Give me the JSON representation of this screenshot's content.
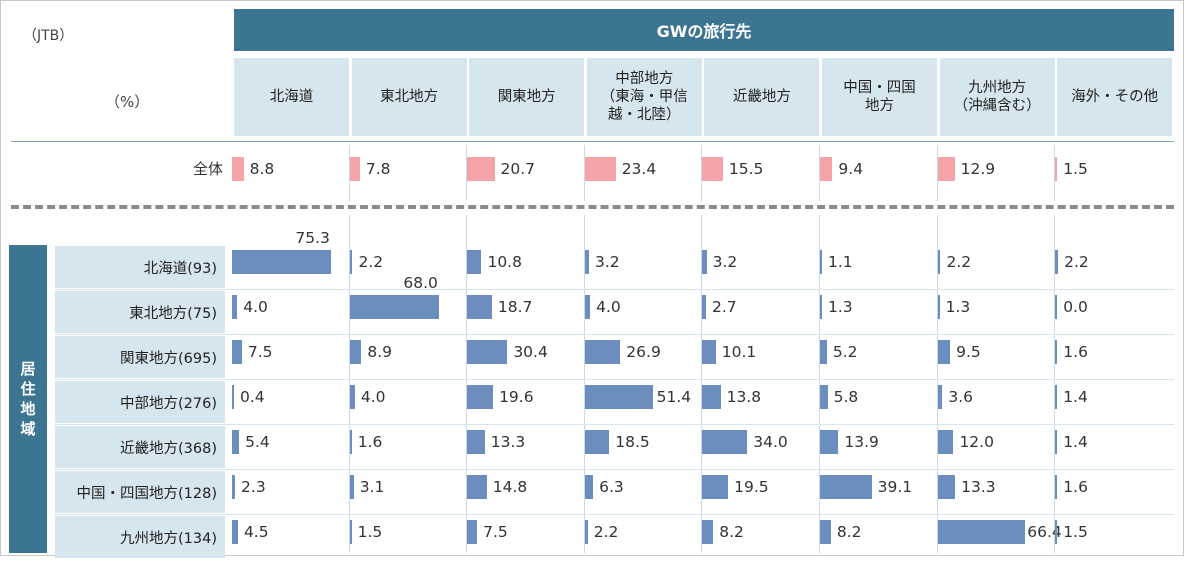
{
  "source_label": "（JTB）",
  "unit_label": "（%）",
  "header_title": "GWの旅行先",
  "row_group_label": [
    "居",
    "住",
    "地",
    "域"
  ],
  "colors": {
    "header": "#3b7591",
    "cell": "#d6e6ee",
    "total_bar": "#f4a3a8",
    "region_bar": "#6b8ebf"
  },
  "chart_data": {
    "type": "bar",
    "title": "GWの旅行先",
    "ylabel": "居住地域",
    "unit": "%",
    "categories": [
      "北海道",
      "東北地方",
      "関東地方",
      "中部地方\n（東海・甲信\n越・北陸）",
      "近畿地方",
      "中国・四国\n地方",
      "九州地方\n（沖縄含む）",
      "海外・その他"
    ],
    "total": {
      "name": "全体",
      "values": [
        8.8,
        7.8,
        20.7,
        23.4,
        15.5,
        9.4,
        12.9,
        1.5
      ]
    },
    "series": [
      {
        "name": "北海道(93)",
        "values": [
          75.3,
          2.2,
          10.8,
          3.2,
          3.2,
          1.1,
          2.2,
          2.2
        ]
      },
      {
        "name": "東北地方(75)",
        "values": [
          4.0,
          68.0,
          18.7,
          4.0,
          2.7,
          1.3,
          1.3,
          0.0
        ]
      },
      {
        "name": "関東地方(695)",
        "values": [
          7.5,
          8.9,
          30.4,
          26.9,
          10.1,
          5.2,
          9.5,
          1.6
        ]
      },
      {
        "name": "中部地方(276)",
        "values": [
          0.4,
          4.0,
          19.6,
          51.4,
          13.8,
          5.8,
          3.6,
          1.4
        ]
      },
      {
        "name": "近畿地方(368)",
        "values": [
          5.4,
          1.6,
          13.3,
          18.5,
          34.0,
          13.9,
          12.0,
          1.4
        ]
      },
      {
        "name": "中国・四国地方(128)",
        "values": [
          2.3,
          3.1,
          14.8,
          6.3,
          19.5,
          39.1,
          13.3,
          1.6
        ]
      },
      {
        "name": "九州地方(134)",
        "values": [
          4.5,
          1.5,
          7.5,
          2.2,
          8.2,
          8.2,
          66.4,
          1.5
        ]
      }
    ]
  }
}
